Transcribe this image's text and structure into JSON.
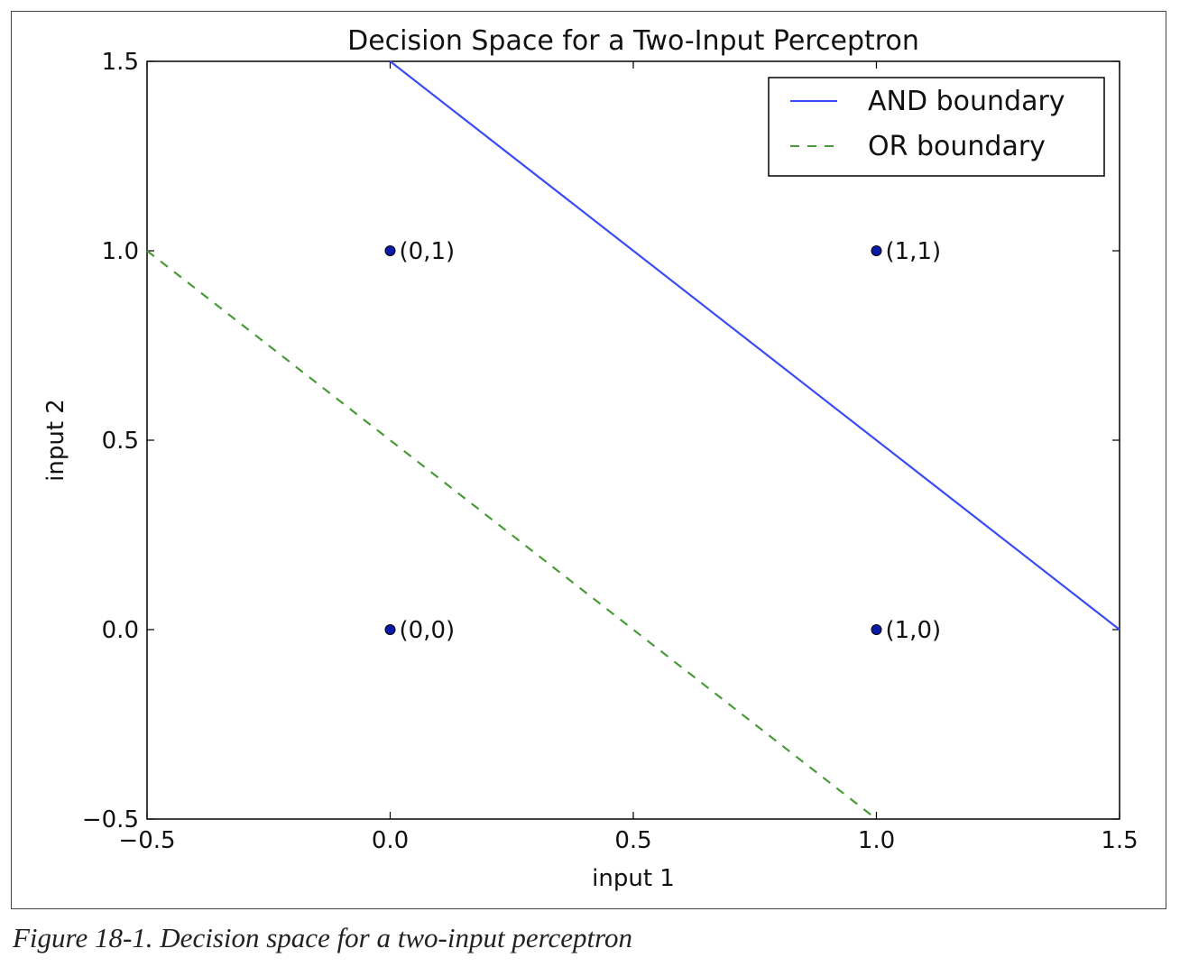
{
  "chart_data": {
    "type": "line",
    "title": "Decision Space for a Two-Input Perceptron",
    "xlabel": "input 1",
    "ylabel": "input 2",
    "xlim": [
      -0.5,
      1.5
    ],
    "ylim": [
      -0.5,
      1.5
    ],
    "xticks": [
      -0.5,
      0.0,
      0.5,
      1.0,
      1.5
    ],
    "yticks": [
      -0.5,
      0.0,
      0.5,
      1.0,
      1.5
    ],
    "xtick_labels": [
      "−0.5",
      "0.0",
      "0.5",
      "1.0",
      "1.5"
    ],
    "ytick_labels": [
      "−0.5",
      "0.0",
      "0.5",
      "1.0",
      "1.5"
    ],
    "grid": false,
    "legend_position": "top-right",
    "series": [
      {
        "name": "AND boundary",
        "style": "solid",
        "color": "#3a4cf5",
        "x": [
          0.0,
          1.5
        ],
        "y": [
          1.5,
          0.0
        ]
      },
      {
        "name": "OR boundary",
        "style": "dashed",
        "color": "#4a9a3a",
        "x": [
          -0.5,
          1.0
        ],
        "y": [
          1.0,
          -0.5
        ]
      }
    ],
    "points": [
      {
        "x": 0,
        "y": 1,
        "label": "(0,1)"
      },
      {
        "x": 1,
        "y": 1,
        "label": "(1,1)"
      },
      {
        "x": 0,
        "y": 0,
        "label": "(0,0)"
      },
      {
        "x": 1,
        "y": 0,
        "label": "(1,0)"
      }
    ],
    "point_color": "#0a1aa8"
  },
  "caption": "Figure 18-1. Decision space for a two-input perceptron"
}
